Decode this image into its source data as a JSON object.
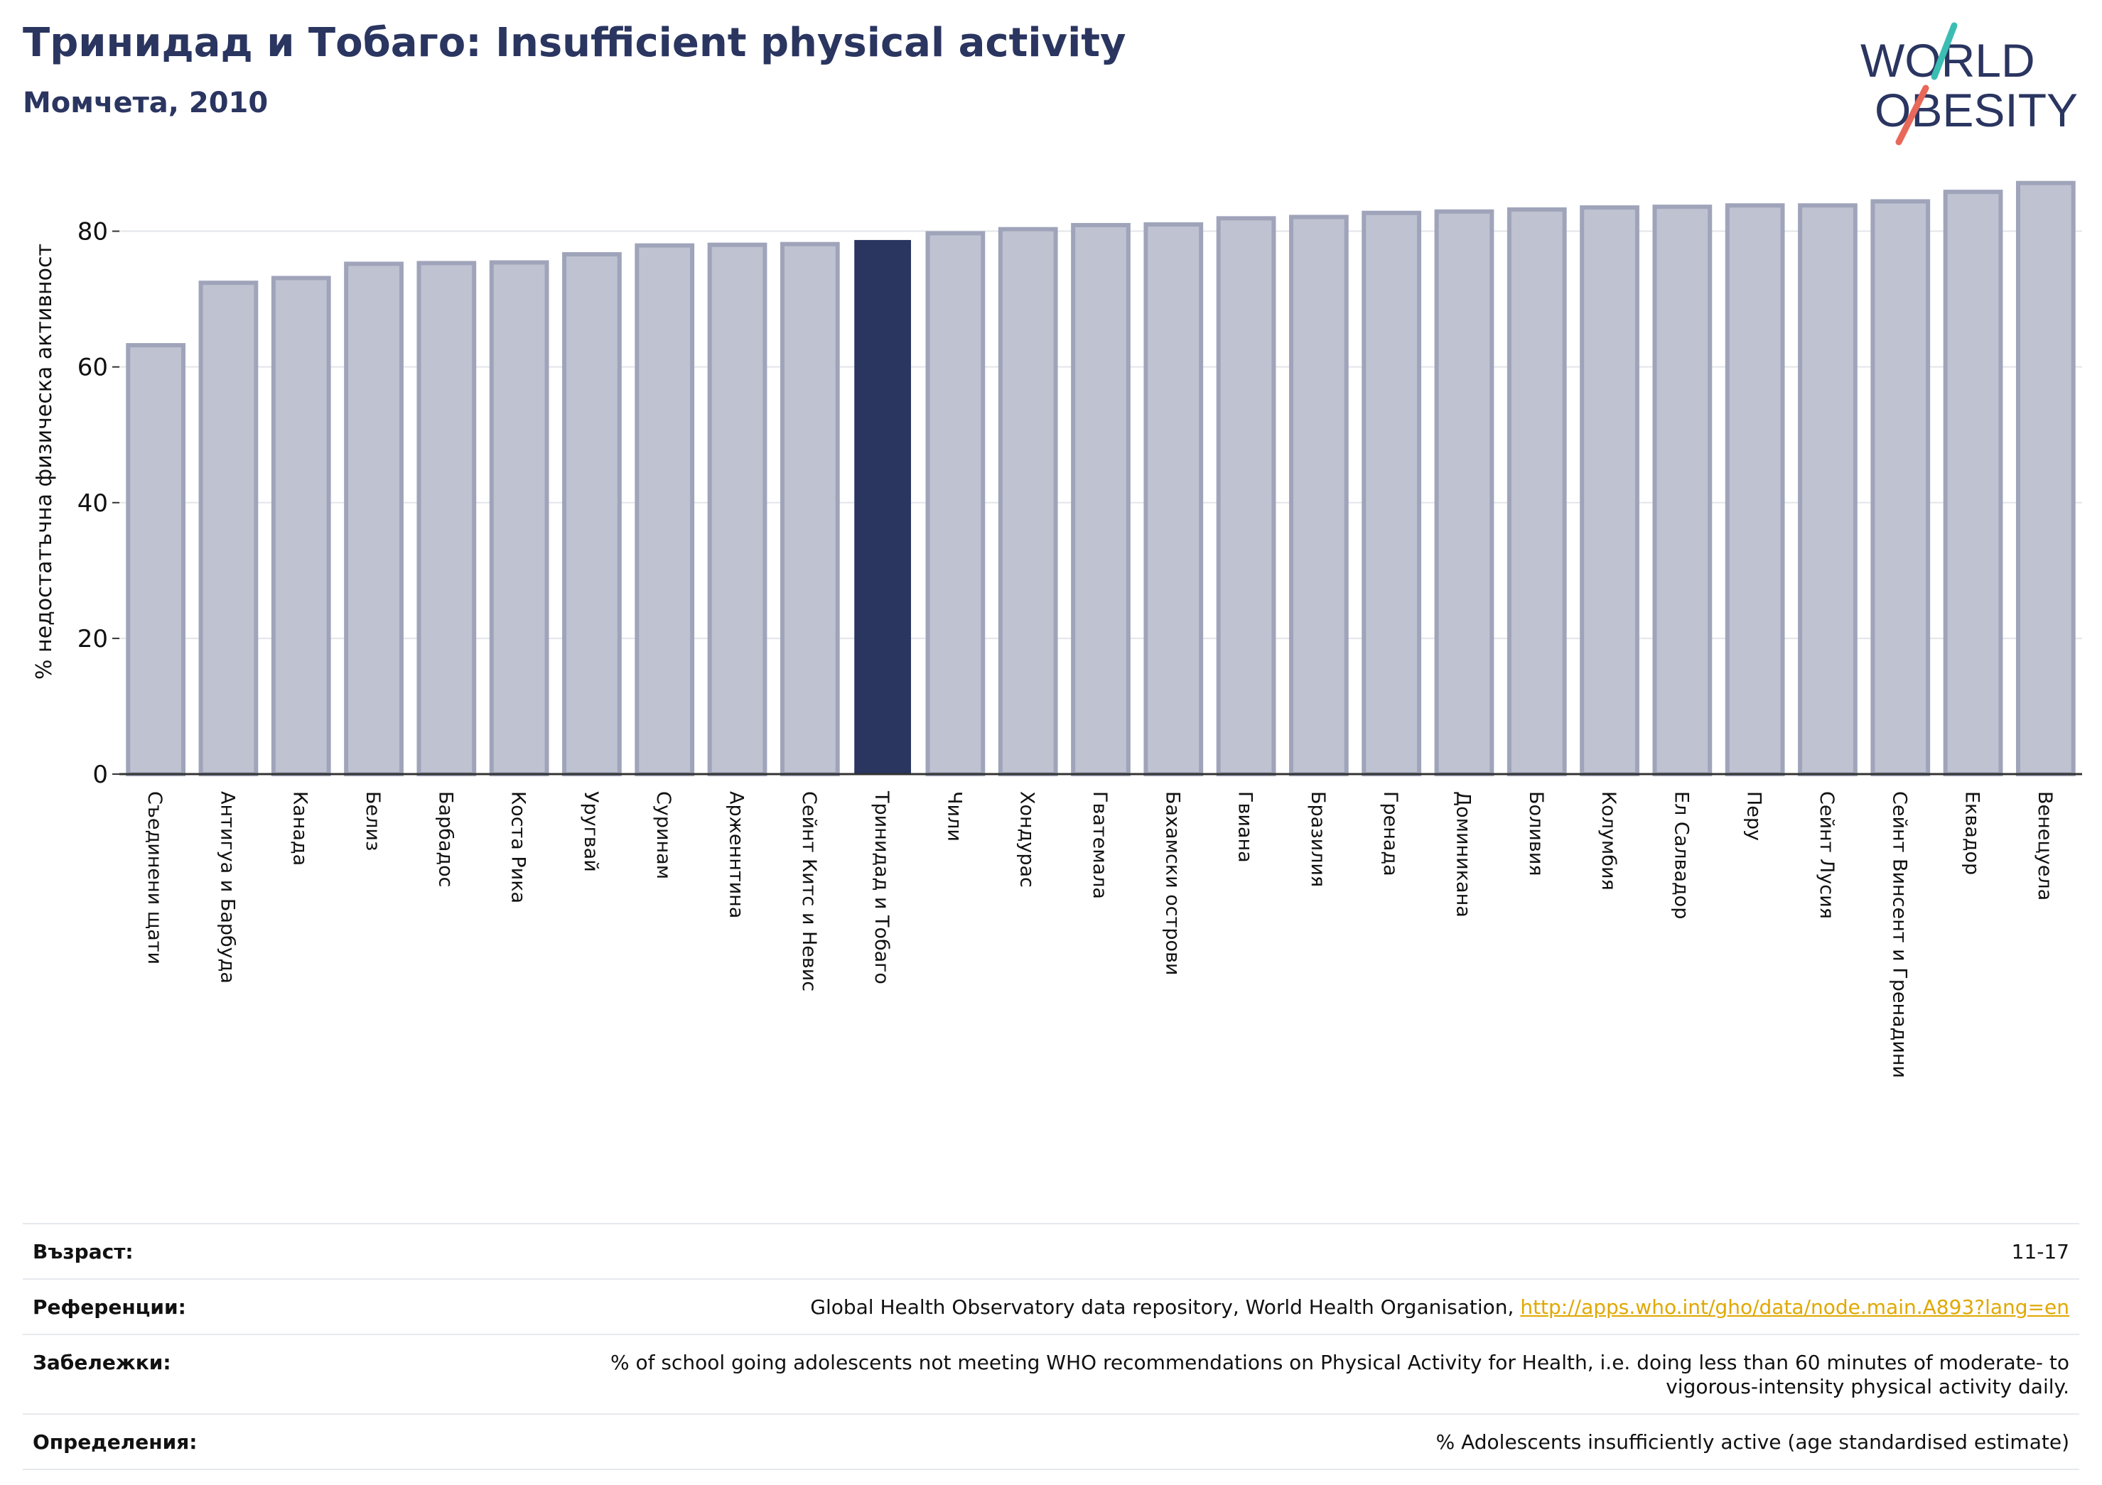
{
  "header": {
    "title": "Тринидад и Тобаго: Insufficient physical activity",
    "subtitle": "Момчета, 2010"
  },
  "logo": {
    "line1": "WORLD",
    "line2": "OBESITY",
    "colors": {
      "text": "#2a3560",
      "slash_teal": "#3bbdb4",
      "slash_coral": "#e8685a"
    }
  },
  "colors": {
    "bar": "#bfc2d0",
    "bar_edge": "#9fa4ba",
    "highlight": "#2a3560",
    "grid": "#e3e5ea",
    "axis": "#333333"
  },
  "chart_data": {
    "type": "bar",
    "ylabel": "% недостатъчна физическа активност",
    "ylim": [
      0,
      90
    ],
    "yticks": [
      0,
      20,
      40,
      60,
      80
    ],
    "grid": true,
    "highlight_index": 10,
    "categories": [
      "Съединени щати",
      "Антигуа и Барбуда",
      "Канада",
      "Белиз",
      "Барбадос",
      "Коста Рика",
      "Уругвай",
      "Суринам",
      "Арженнтина",
      "Сейнт Китс и Невис",
      "Тринидад и Тобаго",
      "Чили",
      "Хондурас",
      "Гватемала",
      "Бахамски острови",
      "Гвиана",
      "Бразилия",
      "Гренада",
      "Доминикана",
      "Боливия",
      "Колумбия",
      "Ел Салвадор",
      "Перу",
      "Сейнт Лусия",
      "Сейнт Винсент и Гренадини",
      "Еквадор",
      "Венецуела"
    ],
    "values": [
      63.2,
      72.4,
      73.1,
      75.2,
      75.3,
      75.4,
      76.6,
      77.9,
      78.0,
      78.1,
      78.6,
      79.7,
      80.3,
      80.9,
      81.0,
      81.9,
      82.1,
      82.7,
      82.9,
      83.2,
      83.5,
      83.6,
      83.8,
      83.8,
      84.4,
      85.8,
      87.1
    ]
  },
  "footer": {
    "rows": [
      {
        "label": "Възраст:",
        "value": "11-17"
      },
      {
        "label": "Референции:",
        "value": "Global Health Observatory data repository, World Health Organisation, ",
        "link": "http://apps.who.int/gho/data/node.main.A893?lang=en"
      },
      {
        "label": "Забележки:",
        "value": "% of school going adolescents not meeting WHO recommendations on Physical Activity for Health, i.e. doing less than 60 minutes of moderate- to vigorous-intensity physical activity daily."
      },
      {
        "label": "Определения:",
        "value": "% Adolescents insufficiently active (age standardised estimate)"
      }
    ]
  }
}
